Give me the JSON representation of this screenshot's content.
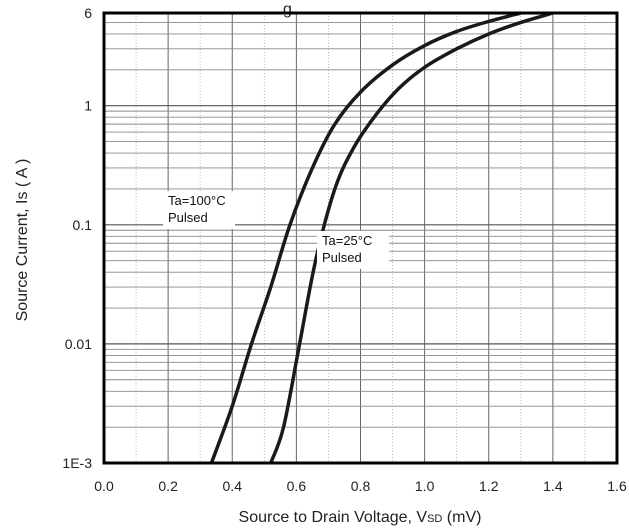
{
  "chart_data": {
    "type": "line",
    "title_fragment": "g",
    "xlabel": "Source to Drain Voltage, V",
    "xlabel_sub": "SD",
    "xlabel_unit": " (mV)",
    "ylabel": "Source Current, Is ( A )",
    "xlim": [
      0.0,
      1.6
    ],
    "ylim": [
      0.001,
      6
    ],
    "yscale": "log",
    "grid": true,
    "xticks": [
      0.0,
      0.2,
      0.4,
      0.6,
      0.8,
      1.0,
      1.2,
      1.4,
      1.6
    ],
    "xtick_labels": [
      "0.0",
      "0.2",
      "0.4",
      "0.6",
      "0.8",
      "1.0",
      "1.2",
      "1.4",
      "1.6"
    ],
    "yticks": [
      0.001,
      0.01,
      0.1,
      1,
      6
    ],
    "ytick_labels": [
      "1E-3",
      "0.01",
      "0.1",
      "1",
      "6"
    ],
    "series": [
      {
        "label_lines": [
          "Ta=100°C",
          "Pulsed"
        ],
        "color": "#1a1a1a",
        "x": [
          0.335,
          0.4,
          0.46,
          0.52,
          0.58,
          0.65,
          0.72,
          0.8,
          0.9,
          1.0,
          1.1,
          1.2,
          1.3
        ],
        "y": [
          0.001,
          0.003,
          0.01,
          0.03,
          0.1,
          0.3,
          0.7,
          1.3,
          2.2,
          3.2,
          4.2,
          5.1,
          6.0
        ]
      },
      {
        "label_lines": [
          "Ta=25°C",
          "Pulsed"
        ],
        "color": "#1a1a1a",
        "x": [
          0.52,
          0.56,
          0.61,
          0.66,
          0.72,
          0.78,
          0.85,
          0.92,
          1.0,
          1.1,
          1.2,
          1.3,
          1.4
        ],
        "y": [
          0.001,
          0.002,
          0.01,
          0.05,
          0.2,
          0.45,
          0.85,
          1.4,
          2.1,
          3.0,
          4.0,
          5.0,
          6.0
        ]
      }
    ]
  }
}
